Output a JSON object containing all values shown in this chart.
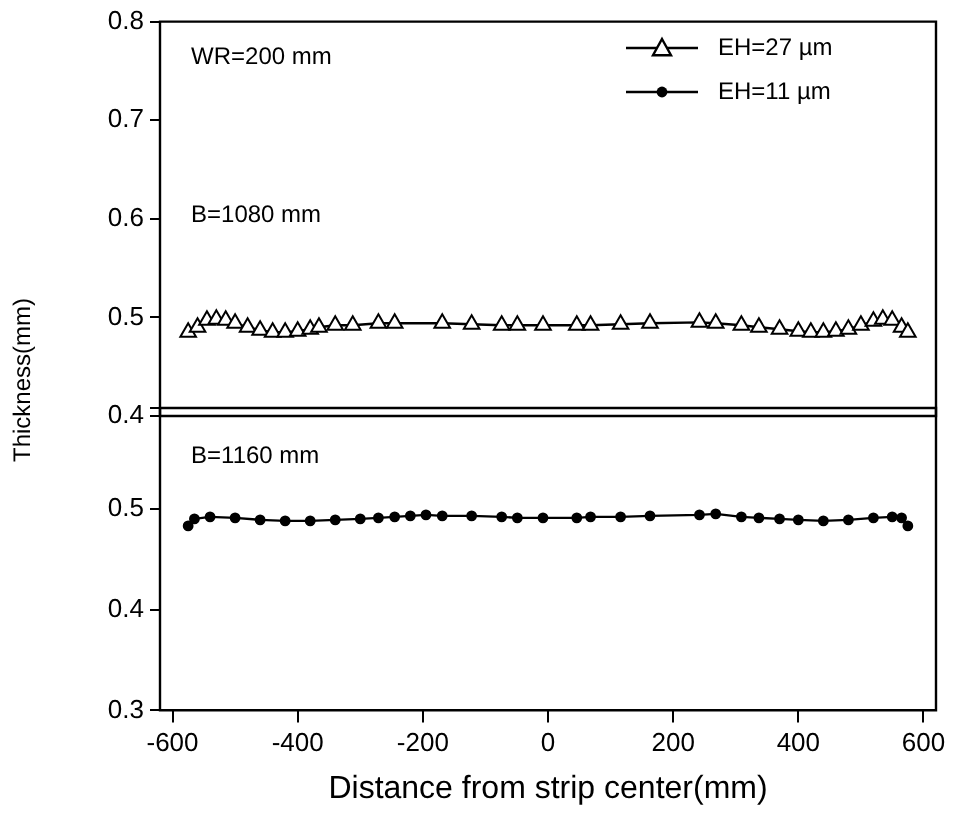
{
  "chart_data": [
    {
      "type": "line",
      "ylabel": "Thickness(mm)",
      "annotations": [
        "WR=200 mm",
        "B=1080 mm"
      ],
      "xlim": [
        -620,
        620
      ],
      "ylim": [
        0.4,
        0.8
      ],
      "yticks": [
        0.4,
        0.5,
        0.6,
        0.7,
        0.8
      ],
      "tick_labels": "y",
      "grid": false,
      "legend": "top right",
      "marker": "triangle",
      "line_style": "solid",
      "series": [
        {
          "name": "EH=27 µm",
          "color": "#000000",
          "x": [
            -575,
            -560,
            -545,
            -530,
            -515,
            -500,
            -480,
            -460,
            -440,
            -420,
            -400,
            -380,
            -366,
            -340,
            -312,
            -271,
            -245,
            -169,
            -122,
            -74,
            -49,
            -8,
            46,
            68,
            116,
            163,
            242,
            268,
            309,
            337,
            370,
            400,
            420,
            440,
            460,
            480,
            500,
            520,
            535,
            550,
            565,
            575
          ],
          "values": [
            0.485,
            0.49,
            0.497,
            0.498,
            0.497,
            0.494,
            0.49,
            0.487,
            0.485,
            0.485,
            0.486,
            0.488,
            0.49,
            0.492,
            0.492,
            0.494,
            0.494,
            0.494,
            0.493,
            0.492,
            0.492,
            0.492,
            0.492,
            0.492,
            0.493,
            0.494,
            0.495,
            0.494,
            0.492,
            0.49,
            0.488,
            0.486,
            0.485,
            0.485,
            0.486,
            0.488,
            0.492,
            0.496,
            0.498,
            0.497,
            0.49,
            0.485
          ]
        }
      ]
    },
    {
      "type": "line",
      "xlabel": "Distance from strip center(mm)",
      "annotations": [
        "B=1160 mm"
      ],
      "xlim": [
        -620,
        620
      ],
      "xticks": [
        -600,
        -400,
        -200,
        0,
        200,
        400,
        600
      ],
      "ylim": [
        0.3,
        0.6
      ],
      "yticks": [
        0.3,
        0.4,
        0.5,
        {
          "value": 0.6,
          "label": null
        }
      ],
      "grid": false,
      "legend": "top right",
      "marker": "circle",
      "line_style": "solid",
      "series": [
        {
          "name": "EH=11 µm",
          "color": "#000000",
          "x": [
            -575,
            -565,
            -540,
            -500,
            -460,
            -420,
            -380,
            -340,
            -300,
            -271,
            -245,
            -220,
            -195,
            -169,
            -122,
            -74,
            -49,
            -8,
            46,
            68,
            116,
            163,
            242,
            268,
            309,
            337,
            370,
            400,
            440,
            480,
            520,
            550,
            565,
            575
          ],
          "values": [
            0.483,
            0.49,
            0.492,
            0.491,
            0.489,
            0.488,
            0.488,
            0.489,
            0.49,
            0.491,
            0.492,
            0.493,
            0.494,
            0.493,
            0.493,
            0.492,
            0.491,
            0.491,
            0.491,
            0.492,
            0.492,
            0.493,
            0.494,
            0.495,
            0.492,
            0.491,
            0.49,
            0.489,
            0.488,
            0.489,
            0.491,
            0.492,
            0.491,
            0.483
          ]
        }
      ]
    }
  ]
}
